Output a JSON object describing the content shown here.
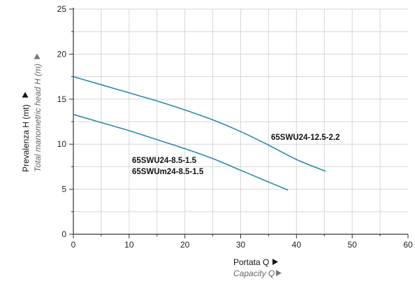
{
  "chart_data": {
    "type": "line",
    "xlim": [
      0,
      60
    ],
    "ylim": [
      0,
      25
    ],
    "x_ticks": [
      "0",
      "10",
      "20",
      "30",
      "40",
      "50",
      "60"
    ],
    "y_ticks": [
      "0",
      "5",
      "10",
      "15",
      "20",
      "25"
    ],
    "xlabel": "Portata Q",
    "xlabel_secondary": "Capacity Q",
    "ylabel": "Prevalenza H (mt)",
    "ylabel_secondary": "Total manometric head H (m)",
    "grid": true,
    "series": [
      {
        "name": "65SWU24-12.5-2.2",
        "color": "#2a8aa8",
        "x": [
          0,
          5,
          10,
          15,
          20,
          25,
          30,
          35,
          40,
          45.2
        ],
        "y": [
          17.5,
          16.6,
          15.7,
          14.8,
          13.8,
          12.7,
          11.4,
          9.9,
          8.3,
          7.0
        ]
      },
      {
        "name": "65SWU24-8.5-1.5",
        "name_line2": "65SWUm24-8.5-1.5",
        "color": "#2a8aa8",
        "x": [
          0,
          5,
          10,
          15,
          20,
          25,
          30,
          35,
          38.5
        ],
        "y": [
          13.3,
          12.4,
          11.5,
          10.5,
          9.5,
          8.4,
          7.1,
          5.8,
          4.9
        ]
      }
    ]
  }
}
